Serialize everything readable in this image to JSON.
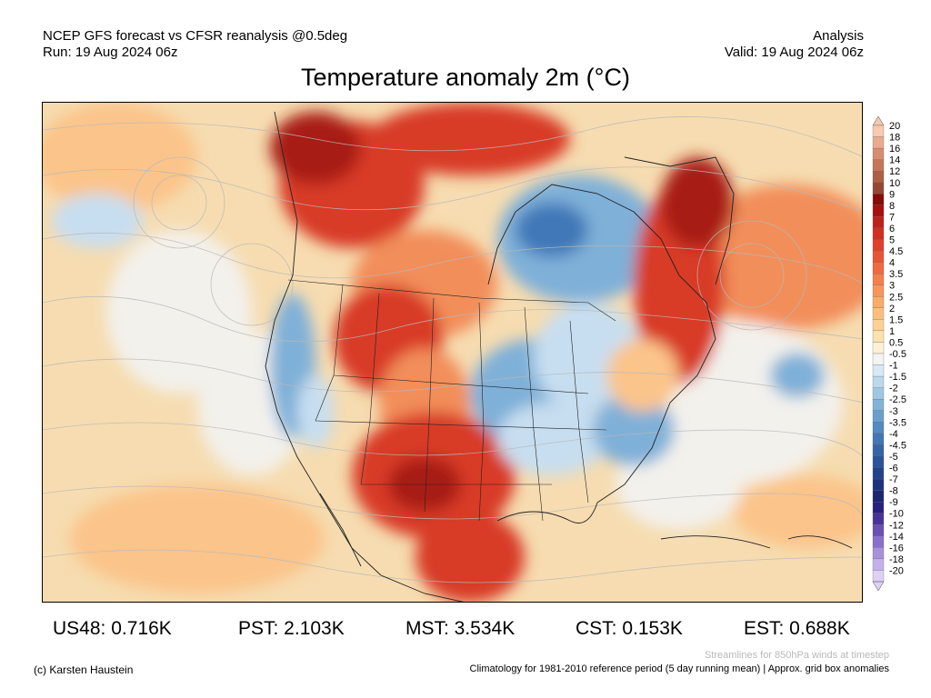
{
  "header": {
    "line1_left": "NCEP GFS forecast vs CFSR reanalysis @0.5deg",
    "line2_left": "Run: 19 Aug 2024 06z",
    "line1_right": "Analysis",
    "line2_right": "Valid: 19 Aug 2024 06z"
  },
  "title": "Temperature anomaly 2m (°C)",
  "legend": {
    "unit": "°C",
    "levels": [
      {
        "label": "20",
        "color": "#f6c9b0"
      },
      {
        "label": "18",
        "color": "#eaaa90"
      },
      {
        "label": "16",
        "color": "#d88d70"
      },
      {
        "label": "14",
        "color": "#c47658"
      },
      {
        "label": "12",
        "color": "#ad5e43"
      },
      {
        "label": "10",
        "color": "#964732"
      },
      {
        "label": "9",
        "color": "#8a0a0a"
      },
      {
        "label": "8",
        "color": "#a81010"
      },
      {
        "label": "7",
        "color": "#c0201a"
      },
      {
        "label": "6",
        "color": "#d22e22"
      },
      {
        "label": "5",
        "color": "#e0402c"
      },
      {
        "label": "4.5",
        "color": "#e85436"
      },
      {
        "label": "4",
        "color": "#ef6a40"
      },
      {
        "label": "3.5",
        "color": "#f4804a"
      },
      {
        "label": "3",
        "color": "#f79658"
      },
      {
        "label": "2.5",
        "color": "#f9ab68"
      },
      {
        "label": "2",
        "color": "#fbbf7c"
      },
      {
        "label": "1.5",
        "color": "#fcd192"
      },
      {
        "label": "1",
        "color": "#fde2ae"
      },
      {
        "label": "0.5",
        "color": "#fdf1d6"
      },
      {
        "label": "-0.5",
        "color": "#f4f4f4"
      },
      {
        "label": "-1",
        "color": "#d8e8f4"
      },
      {
        "label": "-1.5",
        "color": "#bcd8ec"
      },
      {
        "label": "-2",
        "color": "#9fc6e2"
      },
      {
        "label": "-2.5",
        "color": "#84b3d8"
      },
      {
        "label": "-3",
        "color": "#6a9fcd"
      },
      {
        "label": "-3.5",
        "color": "#538bc1"
      },
      {
        "label": "-4",
        "color": "#4177b4"
      },
      {
        "label": "-4.5",
        "color": "#3565a7"
      },
      {
        "label": "-5",
        "color": "#2b549a"
      },
      {
        "label": "-6",
        "color": "#22428c"
      },
      {
        "label": "-7",
        "color": "#1c327e"
      },
      {
        "label": "-8",
        "color": "#1e2670"
      },
      {
        "label": "-9",
        "color": "#2a2080"
      },
      {
        "label": "-10",
        "color": "#4a3398"
      },
      {
        "label": "-12",
        "color": "#6a50b4"
      },
      {
        "label": "-14",
        "color": "#8a70cc"
      },
      {
        "label": "-16",
        "color": "#a890dc"
      },
      {
        "label": "-18",
        "color": "#c4b0ea"
      },
      {
        "label": "-20",
        "color": "#dcd0f4"
      }
    ]
  },
  "stats": [
    {
      "label": "US48: 0.716K"
    },
    {
      "label": "PST: 2.103K"
    },
    {
      "label": "MST: 3.534K"
    },
    {
      "label": "CST: 0.153K"
    },
    {
      "label": "EST: 0.688K"
    }
  ],
  "credit": "(c) Karsten Haustein",
  "streamline_note": "Streamlines for 850hPa winds at timestep",
  "footer": "Climatology for 1981-2010 reference period (5 day running mean) | Approx. grid box anomalies",
  "map_colors": {
    "ocean_warm": "#f6dcb0",
    "warm_light": "#fbc48a",
    "warm_mid": "#f28e5a",
    "hot": "#d83a26",
    "very_hot": "#a81a14",
    "cool_light": "#c7def0",
    "cool_mid": "#7fb0d8",
    "cool_deep": "#3f78b8",
    "neutral": "#f3f1ec"
  }
}
